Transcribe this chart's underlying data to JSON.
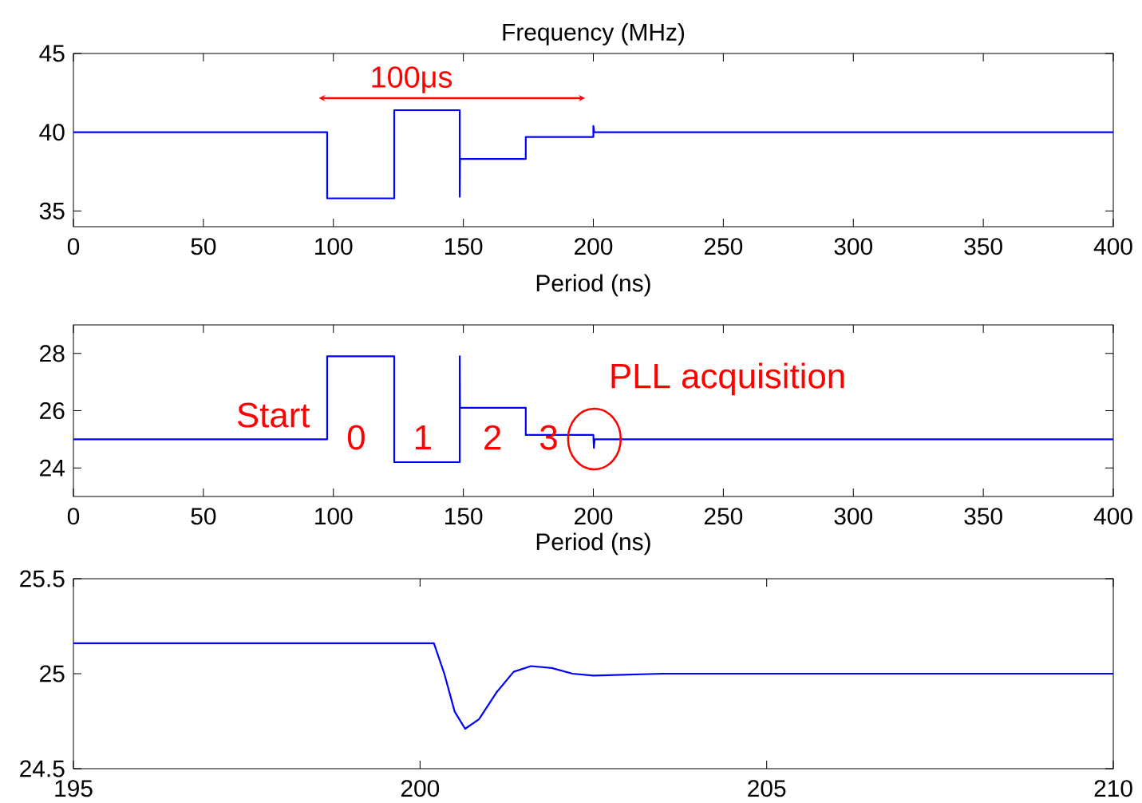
{
  "chart_data": [
    {
      "type": "line",
      "title": "Frequency (MHz)",
      "xlabel": "Period (ns)",
      "xlim": [
        0,
        400
      ],
      "ylim": [
        34,
        45
      ],
      "xticks": [
        0,
        50,
        100,
        150,
        200,
        250,
        300,
        350,
        400
      ],
      "yticks": [
        35,
        40,
        45
      ],
      "annotations": [
        "100μs"
      ],
      "series": [
        {
          "color": "#0000ff",
          "x": [
            0,
            97.6,
            97.6,
            123.4,
            123.4,
            148.6,
            148.6,
            148.7,
            174,
            174,
            200,
            200,
            200.3,
            400
          ],
          "values": [
            40,
            40,
            35.8,
            35.8,
            41.4,
            41.4,
            35.9,
            38.3,
            38.3,
            39.7,
            39.7,
            40.4,
            40,
            40
          ]
        }
      ]
    },
    {
      "type": "line",
      "xlabel": "Period (ns)",
      "xlim": [
        0,
        400
      ],
      "ylim": [
        23,
        29
      ],
      "xticks": [
        0,
        50,
        100,
        150,
        200,
        250,
        300,
        350,
        400
      ],
      "yticks": [
        24,
        26,
        28
      ],
      "annotations": [
        "Start",
        "0",
        "1",
        "2",
        "3",
        "PLL acquisition"
      ],
      "series": [
        {
          "color": "#0000ff",
          "x": [
            0,
            97.6,
            97.6,
            123.4,
            123.4,
            148.6,
            148.6,
            148.7,
            174,
            174,
            200,
            200.2,
            200.5,
            400
          ],
          "values": [
            25,
            25,
            27.9,
            27.9,
            24.2,
            24.2,
            27.9,
            26.1,
            26.1,
            25.15,
            25.15,
            24.7,
            25,
            25
          ]
        }
      ]
    },
    {
      "type": "line",
      "xlim": [
        195,
        210
      ],
      "ylim": [
        24.5,
        25.5
      ],
      "xticks": [
        195,
        200,
        205,
        210
      ],
      "yticks": [
        24.5,
        25,
        25.5
      ],
      "series": [
        {
          "color": "#0000ff",
          "x": [
            195,
            200.2,
            200.35,
            200.5,
            200.65,
            200.85,
            201.1,
            201.35,
            201.6,
            201.9,
            202.2,
            202.5,
            203.5,
            210
          ],
          "values": [
            25.16,
            25.16,
            25.0,
            24.8,
            24.71,
            24.76,
            24.9,
            25.01,
            25.04,
            25.03,
            25.0,
            24.99,
            25.0,
            25.0
          ]
        }
      ]
    }
  ]
}
